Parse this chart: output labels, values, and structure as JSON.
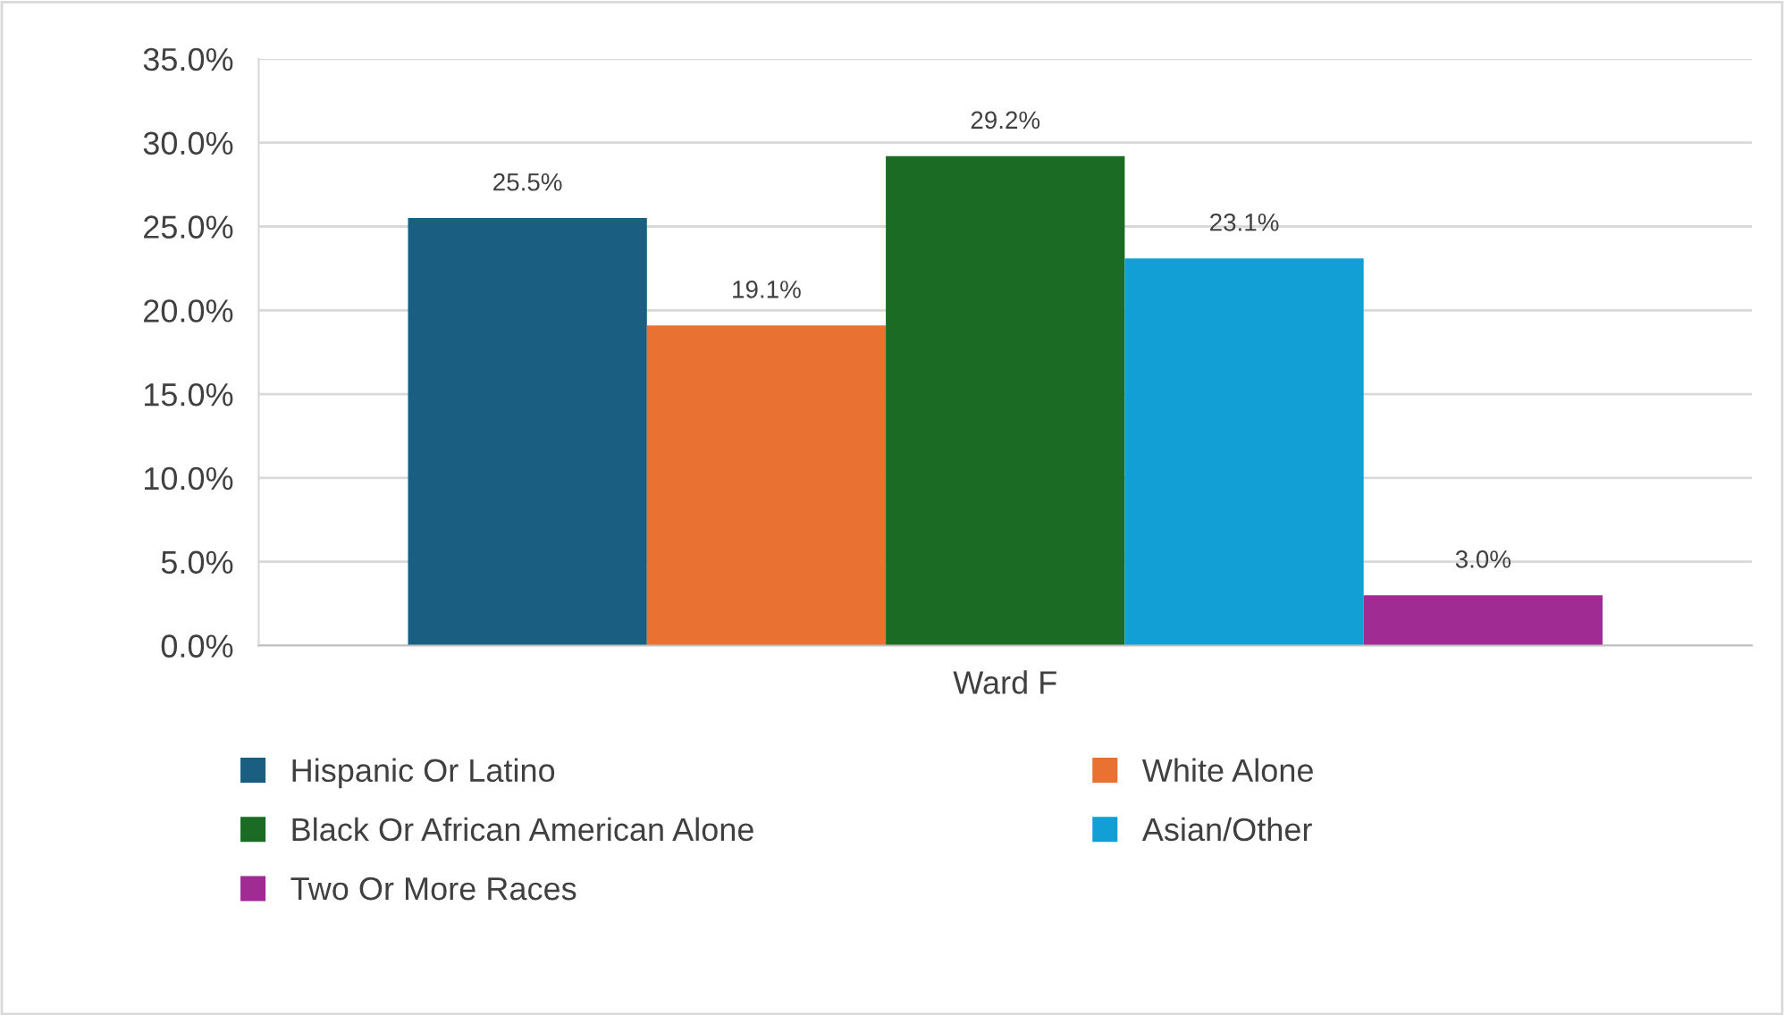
{
  "chart_data": {
    "type": "bar",
    "categories": [
      "Ward F"
    ],
    "series": [
      {
        "name": "Hispanic Or Latino",
        "color": "#1a5f82",
        "values": [
          25.5
        ],
        "value_labels": [
          "25.5%"
        ]
      },
      {
        "name": "White Alone",
        "color": "#e97132",
        "values": [
          19.1
        ],
        "value_labels": [
          "19.1%"
        ]
      },
      {
        "name": "Black Or African American Alone",
        "color": "#1b6b25",
        "values": [
          29.2
        ],
        "value_labels": [
          "29.2%"
        ]
      },
      {
        "name": "Asian/Other",
        "color": "#129fd6",
        "values": [
          23.1
        ],
        "value_labels": [
          "23.1%"
        ]
      },
      {
        "name": "Two Or More Races",
        "color": "#a02b93",
        "values": [
          3.0
        ],
        "value_labels": [
          "3.0%"
        ]
      }
    ],
    "ylim": [
      0,
      35
    ],
    "yticks": [
      {
        "value": 0,
        "label": "0.0%"
      },
      {
        "value": 5,
        "label": "5.0%"
      },
      {
        "value": 10,
        "label": "10.0%"
      },
      {
        "value": 15,
        "label": "15.0%"
      },
      {
        "value": 20,
        "label": "20.0%"
      },
      {
        "value": 25,
        "label": "25.0%"
      },
      {
        "value": 30,
        "label": "30.0%"
      },
      {
        "value": 35,
        "label": "35.0%"
      }
    ],
    "grid": "y",
    "legend": "bottom"
  }
}
